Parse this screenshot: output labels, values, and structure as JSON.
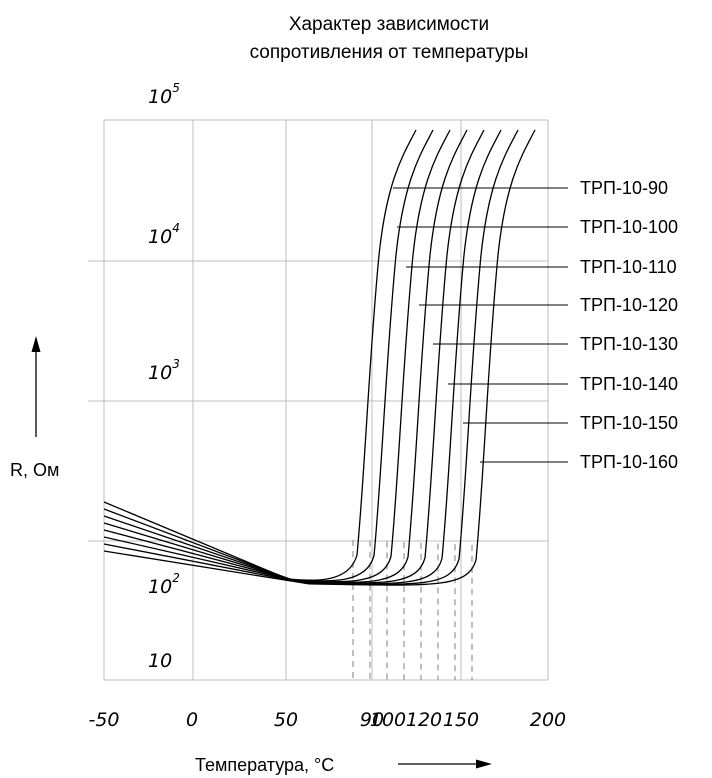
{
  "chart_data": {
    "type": "line",
    "title_line1": "Характер зависимости",
    "title_line2": "сопротивления от температуры",
    "ylabel": "R, Ом",
    "xlabel": "Температура, °С",
    "y_ticks": [
      {
        "base": "10",
        "exp": "5",
        "value": 100000
      },
      {
        "base": "10",
        "exp": "4",
        "value": 10000
      },
      {
        "base": "10",
        "exp": "3",
        "value": 1000
      },
      {
        "base": "10",
        "exp": "2",
        "value": 100
      },
      {
        "base": "10",
        "exp": "",
        "value": 10
      }
    ],
    "x_ticks": [
      {
        "label": "-50",
        "value": -50
      },
      {
        "label": "0",
        "value": 0
      },
      {
        "label": "50",
        "value": 50
      },
      {
        "label": "90",
        "value": 90
      },
      {
        "label": "100",
        "value": 100
      },
      {
        "label": "120",
        "value": 120
      },
      {
        "label": "150",
        "value": 150
      },
      {
        "label": "200",
        "value": 200
      }
    ],
    "y_scale": "log",
    "grid": true,
    "series": [
      {
        "name": "ТРП-10-90",
        "knee_temp": 90
      },
      {
        "name": "ТРП-10-100",
        "knee_temp": 100
      },
      {
        "name": "ТРП-10-110",
        "knee_temp": 110
      },
      {
        "name": "ТРП-10-120",
        "knee_temp": 120
      },
      {
        "name": "ТРП-10-130",
        "knee_temp": 130
      },
      {
        "name": "ТРП-10-140",
        "knee_temp": 140
      },
      {
        "name": "ТРП-10-150",
        "knee_temp": 150
      },
      {
        "name": "ТРП-10-160",
        "knee_temp": 160
      }
    ],
    "colors": {
      "line": "#000000",
      "grid": "#bfbfbf"
    }
  }
}
